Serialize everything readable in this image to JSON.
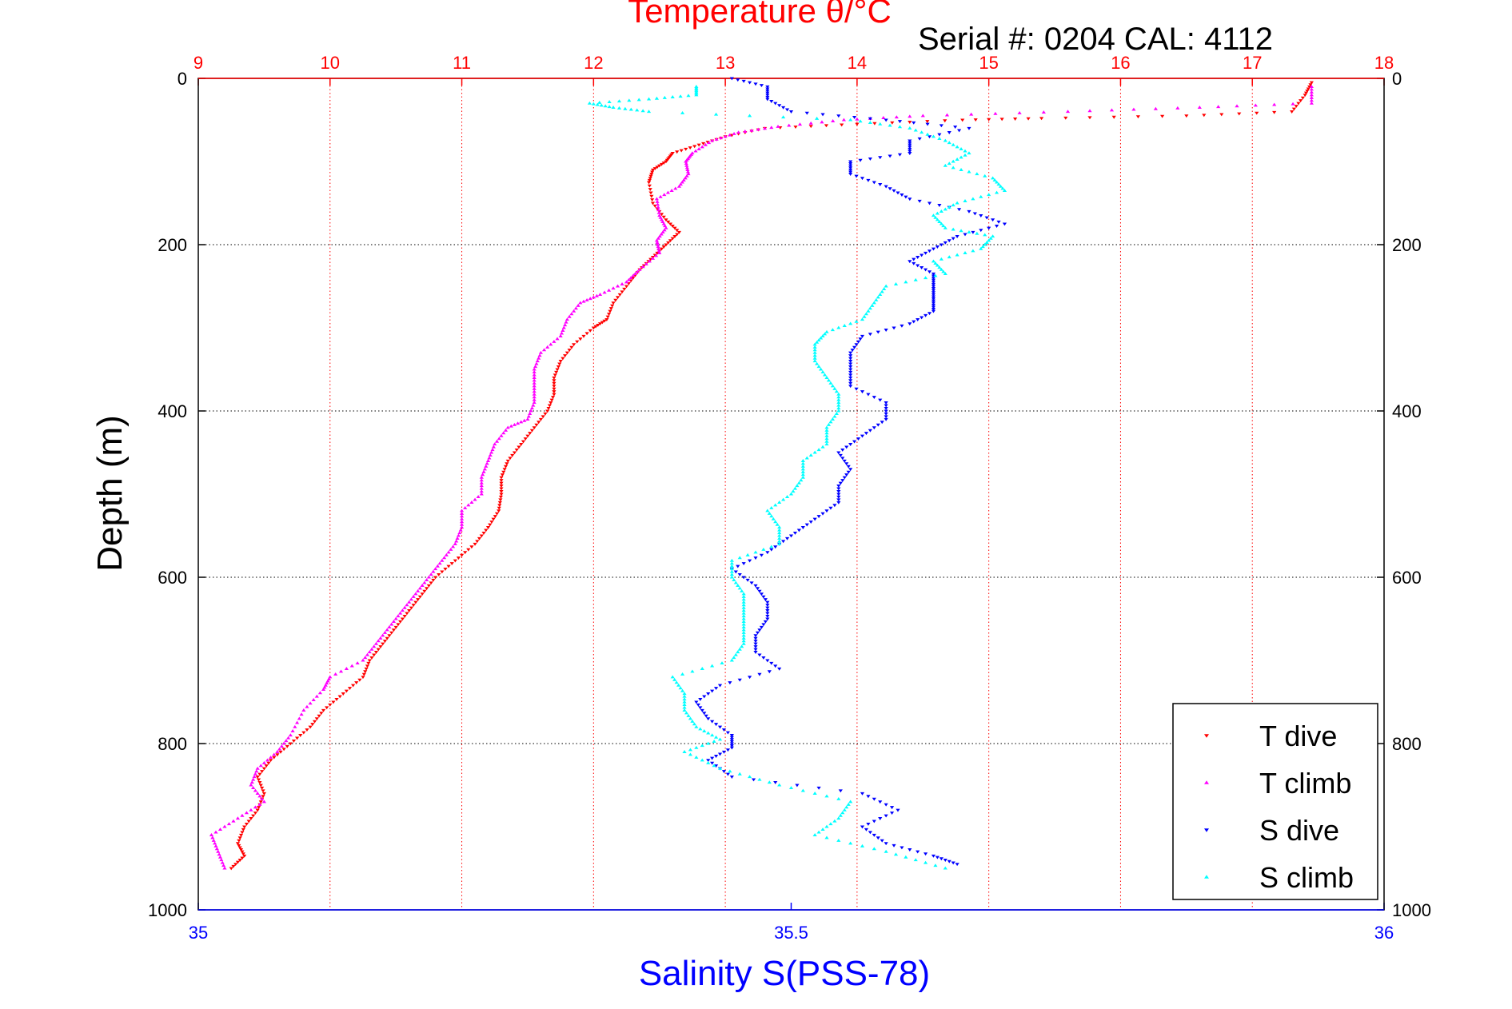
{
  "chart_data": {
    "type": "scatter",
    "title": "Temperature θ/°C",
    "subtitle": "Serial #: 0204  CAL: 4112",
    "ylabel": "Depth (m)",
    "xlabel_bottom": "Salinity S(PSS-78)",
    "ylim": [
      0,
      1000
    ],
    "y_reversed": true,
    "x_top": {
      "label": "Temperature θ/°C",
      "range": [
        9,
        18
      ],
      "ticks": [
        "9",
        "10",
        "11",
        "12",
        "13",
        "14",
        "15",
        "16",
        "17",
        "18"
      ],
      "color": "#ff0000"
    },
    "x_bottom": {
      "label": "Salinity S(PSS-78)",
      "range": [
        35,
        36
      ],
      "ticks": [
        "35",
        "35.5",
        "36"
      ],
      "color": "#0000ff"
    },
    "y_ticks": [
      "0",
      "200",
      "400",
      "600",
      "800",
      "1000"
    ],
    "grid": true,
    "legend_position": "bottom-right",
    "series": [
      {
        "name": "T dive",
        "axis": "temperature",
        "marker": "triangle-down",
        "color": "#ff0000",
        "points": [
          [
            17.45,
            5
          ],
          [
            17.4,
            20
          ],
          [
            17.3,
            40
          ],
          [
            16.5,
            45
          ],
          [
            15.4,
            48
          ],
          [
            14.8,
            50
          ],
          [
            14.0,
            55
          ],
          [
            13.3,
            60
          ],
          [
            13.0,
            70
          ],
          [
            12.8,
            80
          ],
          [
            12.6,
            90
          ],
          [
            12.55,
            100
          ],
          [
            12.45,
            110
          ],
          [
            12.42,
            125
          ],
          [
            12.45,
            150
          ],
          [
            12.55,
            170
          ],
          [
            12.65,
            185
          ],
          [
            12.55,
            200
          ],
          [
            12.45,
            215
          ],
          [
            12.35,
            230
          ],
          [
            12.25,
            250
          ],
          [
            12.15,
            270
          ],
          [
            12.1,
            290
          ],
          [
            12.0,
            300
          ],
          [
            11.85,
            320
          ],
          [
            11.75,
            340
          ],
          [
            11.7,
            360
          ],
          [
            11.7,
            380
          ],
          [
            11.65,
            400
          ],
          [
            11.55,
            420
          ],
          [
            11.45,
            440
          ],
          [
            11.35,
            460
          ],
          [
            11.3,
            480
          ],
          [
            11.3,
            500
          ],
          [
            11.28,
            520
          ],
          [
            11.2,
            540
          ],
          [
            11.1,
            560
          ],
          [
            10.95,
            580
          ],
          [
            10.8,
            600
          ],
          [
            10.7,
            620
          ],
          [
            10.6,
            640
          ],
          [
            10.5,
            660
          ],
          [
            10.4,
            680
          ],
          [
            10.3,
            700
          ],
          [
            10.25,
            720
          ],
          [
            10.1,
            740
          ],
          [
            9.95,
            760
          ],
          [
            9.85,
            780
          ],
          [
            9.7,
            800
          ],
          [
            9.55,
            820
          ],
          [
            9.45,
            840
          ],
          [
            9.5,
            860
          ],
          [
            9.45,
            880
          ],
          [
            9.35,
            900
          ],
          [
            9.3,
            920
          ],
          [
            9.35,
            935
          ],
          [
            9.25,
            950
          ]
        ]
      },
      {
        "name": "T climb",
        "axis": "temperature",
        "marker": "triangle-up",
        "color": "#ff00ff",
        "points": [
          [
            17.45,
            10
          ],
          [
            17.45,
            30
          ],
          [
            16.6,
            35
          ],
          [
            15.6,
            40
          ],
          [
            14.5,
            45
          ],
          [
            13.9,
            50
          ],
          [
            13.4,
            58
          ],
          [
            13.1,
            65
          ],
          [
            12.9,
            75
          ],
          [
            12.75,
            90
          ],
          [
            12.7,
            100
          ],
          [
            12.72,
            115
          ],
          [
            12.65,
            130
          ],
          [
            12.48,
            145
          ],
          [
            12.5,
            165
          ],
          [
            12.55,
            180
          ],
          [
            12.48,
            195
          ],
          [
            12.5,
            210
          ],
          [
            12.35,
            230
          ],
          [
            12.25,
            245
          ],
          [
            12.05,
            260
          ],
          [
            11.9,
            270
          ],
          [
            11.8,
            290
          ],
          [
            11.75,
            310
          ],
          [
            11.6,
            330
          ],
          [
            11.55,
            350
          ],
          [
            11.55,
            370
          ],
          [
            11.55,
            390
          ],
          [
            11.5,
            410
          ],
          [
            11.35,
            420
          ],
          [
            11.25,
            440
          ],
          [
            11.2,
            460
          ],
          [
            11.15,
            480
          ],
          [
            11.15,
            500
          ],
          [
            11.0,
            520
          ],
          [
            11.0,
            540
          ],
          [
            10.95,
            560
          ],
          [
            10.85,
            580
          ],
          [
            10.75,
            600
          ],
          [
            10.65,
            620
          ],
          [
            10.55,
            640
          ],
          [
            10.45,
            660
          ],
          [
            10.35,
            680
          ],
          [
            10.25,
            700
          ],
          [
            10.0,
            720
          ],
          [
            9.95,
            735
          ],
          [
            9.8,
            760
          ],
          [
            9.7,
            790
          ],
          [
            9.6,
            810
          ],
          [
            9.45,
            830
          ],
          [
            9.4,
            850
          ],
          [
            9.5,
            870
          ],
          [
            9.3,
            890
          ],
          [
            9.1,
            910
          ],
          [
            9.15,
            930
          ],
          [
            9.2,
            950
          ]
        ]
      },
      {
        "name": "S dive",
        "axis": "salinity",
        "marker": "triangle-down",
        "color": "#0000ff",
        "points": [
          [
            35.45,
            0
          ],
          [
            35.48,
            10
          ],
          [
            35.48,
            25
          ],
          [
            35.5,
            40
          ],
          [
            35.58,
            50
          ],
          [
            35.65,
            60
          ],
          [
            35.6,
            75
          ],
          [
            35.6,
            90
          ],
          [
            35.55,
            100
          ],
          [
            35.55,
            115
          ],
          [
            35.58,
            130
          ],
          [
            35.6,
            145
          ],
          [
            35.65,
            160
          ],
          [
            35.68,
            175
          ],
          [
            35.64,
            190
          ],
          [
            35.62,
            205
          ],
          [
            35.6,
            220
          ],
          [
            35.62,
            235
          ],
          [
            35.62,
            250
          ],
          [
            35.62,
            265
          ],
          [
            35.62,
            280
          ],
          [
            35.6,
            295
          ],
          [
            35.56,
            310
          ],
          [
            35.55,
            330
          ],
          [
            35.55,
            350
          ],
          [
            35.55,
            370
          ],
          [
            35.58,
            390
          ],
          [
            35.58,
            410
          ],
          [
            35.56,
            430
          ],
          [
            35.54,
            450
          ],
          [
            35.55,
            470
          ],
          [
            35.54,
            490
          ],
          [
            35.54,
            510
          ],
          [
            35.52,
            530
          ],
          [
            35.5,
            550
          ],
          [
            35.48,
            570
          ],
          [
            35.45,
            590
          ],
          [
            35.47,
            610
          ],
          [
            35.48,
            630
          ],
          [
            35.48,
            650
          ],
          [
            35.47,
            670
          ],
          [
            35.47,
            690
          ],
          [
            35.49,
            710
          ],
          [
            35.44,
            730
          ],
          [
            35.42,
            750
          ],
          [
            35.43,
            770
          ],
          [
            35.45,
            790
          ],
          [
            35.45,
            805
          ],
          [
            35.43,
            820
          ],
          [
            35.45,
            840
          ],
          [
            35.56,
            860
          ],
          [
            35.59,
            880
          ],
          [
            35.56,
            900
          ],
          [
            35.58,
            920
          ],
          [
            35.62,
            935
          ],
          [
            35.64,
            945
          ]
        ]
      },
      {
        "name": "S climb",
        "axis": "salinity",
        "marker": "triangle-up",
        "color": "#00ffff",
        "points": [
          [
            35.42,
            10
          ],
          [
            35.42,
            20
          ],
          [
            35.38,
            25
          ],
          [
            35.33,
            30
          ],
          [
            35.35,
            35
          ],
          [
            35.38,
            40
          ],
          [
            35.55,
            50
          ],
          [
            35.6,
            60
          ],
          [
            35.63,
            75
          ],
          [
            35.65,
            90
          ],
          [
            35.63,
            105
          ],
          [
            35.67,
            120
          ],
          [
            35.68,
            135
          ],
          [
            35.64,
            150
          ],
          [
            35.62,
            165
          ],
          [
            35.63,
            180
          ],
          [
            35.67,
            190
          ],
          [
            35.66,
            205
          ],
          [
            35.62,
            220
          ],
          [
            35.63,
            235
          ],
          [
            35.58,
            250
          ],
          [
            35.57,
            270
          ],
          [
            35.56,
            290
          ],
          [
            35.53,
            305
          ],
          [
            35.52,
            320
          ],
          [
            35.52,
            340
          ],
          [
            35.53,
            360
          ],
          [
            35.54,
            380
          ],
          [
            35.54,
            400
          ],
          [
            35.53,
            420
          ],
          [
            35.53,
            440
          ],
          [
            35.51,
            460
          ],
          [
            35.51,
            480
          ],
          [
            35.5,
            500
          ],
          [
            35.48,
            520
          ],
          [
            35.49,
            540
          ],
          [
            35.49,
            560
          ],
          [
            35.45,
            580
          ],
          [
            35.45,
            600
          ],
          [
            35.46,
            620
          ],
          [
            35.46,
            640
          ],
          [
            35.46,
            660
          ],
          [
            35.46,
            680
          ],
          [
            35.45,
            700
          ],
          [
            35.4,
            720
          ],
          [
            35.41,
            740
          ],
          [
            35.41,
            760
          ],
          [
            35.42,
            780
          ],
          [
            35.44,
            795
          ],
          [
            35.41,
            810
          ],
          [
            35.44,
            830
          ],
          [
            35.49,
            850
          ],
          [
            35.55,
            870
          ],
          [
            35.54,
            890
          ],
          [
            35.52,
            910
          ],
          [
            35.58,
            930
          ],
          [
            35.63,
            950
          ]
        ]
      }
    ]
  }
}
